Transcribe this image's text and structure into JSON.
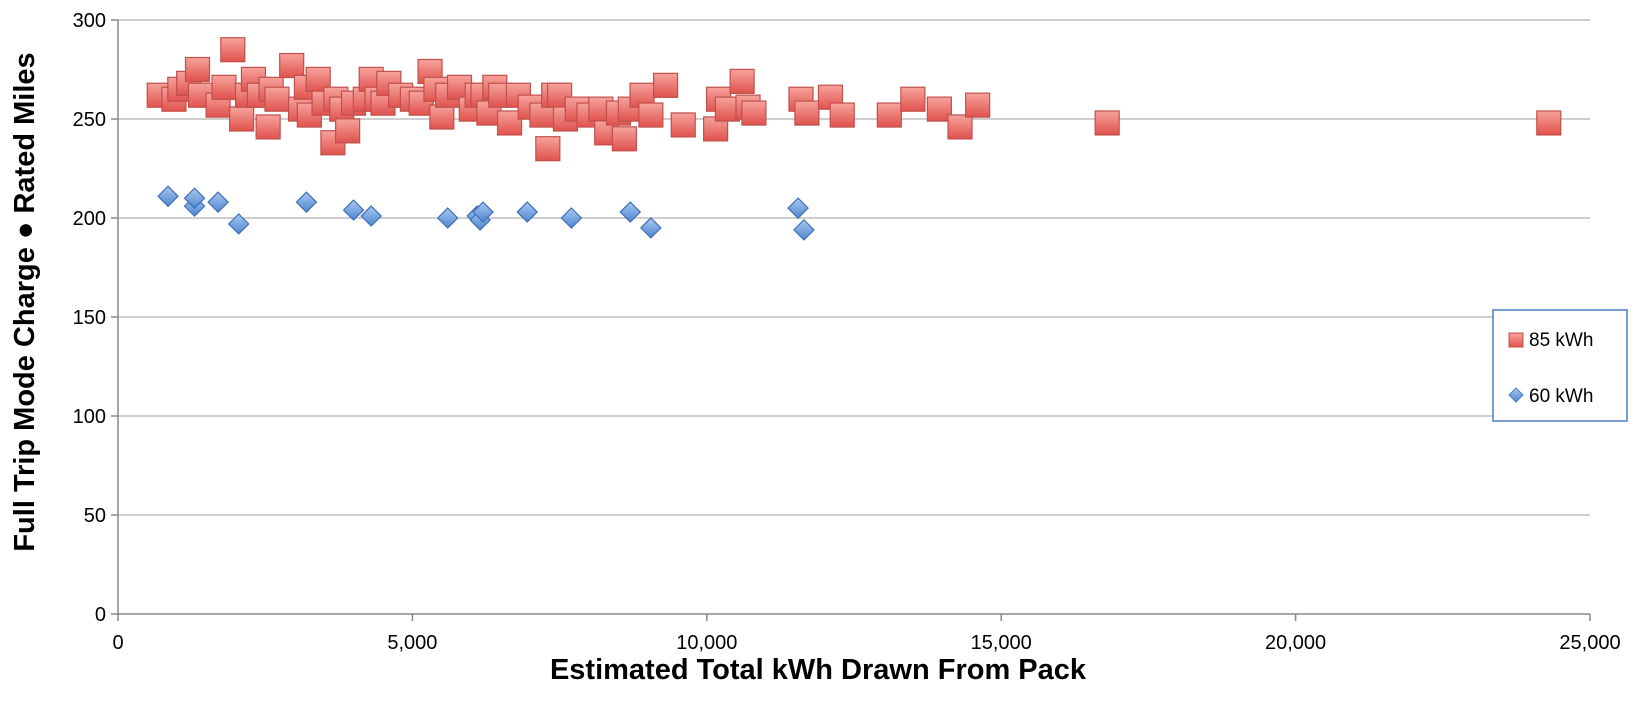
{
  "chart_data": {
    "type": "scatter",
    "title": "",
    "xlabel": "Estimated Total kWh Drawn From Pack",
    "ylabel": "Full Trip Mode Charge ● Rated Miles",
    "xlim": [
      0,
      25000
    ],
    "ylim": [
      0,
      300
    ],
    "x_ticks": [
      0,
      5000,
      10000,
      15000,
      20000,
      25000
    ],
    "x_tick_labels": [
      "0",
      "5,000",
      "10,000",
      "15,000",
      "20,000",
      "25,000"
    ],
    "y_ticks": [
      0,
      50,
      100,
      150,
      200,
      250,
      300
    ],
    "y_tick_labels": [
      "0",
      "50",
      "100",
      "150",
      "200",
      "250",
      "300"
    ],
    "grid": true,
    "legend_position": "right",
    "series": [
      {
        "name": "85 kWh",
        "marker": "square",
        "color": "#e8605a",
        "x": [
          700,
          950,
          1050,
          1200,
          1350,
          1400,
          1700,
          1800,
          1950,
          2100,
          2200,
          2300,
          2400,
          2550,
          2600,
          2700,
          2950,
          3100,
          3200,
          3250,
          3400,
          3500,
          3650,
          3700,
          3800,
          3900,
          4000,
          4200,
          4300,
          4400,
          4500,
          4600,
          4800,
          5000,
          5150,
          5300,
          5400,
          5500,
          5600,
          5800,
          6000,
          6100,
          6200,
          6300,
          6400,
          6500,
          6650,
          6800,
          7000,
          7200,
          7300,
          7400,
          7500,
          7600,
          7800,
          8000,
          8200,
          8300,
          8500,
          8600,
          8700,
          8900,
          9050,
          9300,
          9600,
          10150,
          10200,
          10350,
          10600,
          10700,
          10800,
          11600,
          11700,
          12100,
          12300,
          13100,
          13500,
          13950,
          14300,
          14600,
          16800,
          24300
        ],
        "y": [
          262,
          260,
          265,
          268,
          275,
          262,
          257,
          266,
          285,
          250,
          262,
          270,
          262,
          246,
          265,
          260,
          277,
          255,
          266,
          252,
          270,
          258,
          238,
          260,
          255,
          244,
          258,
          260,
          270,
          260,
          258,
          268,
          262,
          260,
          258,
          274,
          265,
          251,
          262,
          266,
          255,
          262,
          262,
          253,
          266,
          262,
          248,
          262,
          256,
          252,
          235,
          262,
          262,
          250,
          255,
          252,
          255,
          243,
          253,
          240,
          255,
          262,
          252,
          267,
          247,
          245,
          260,
          255,
          269,
          256,
          253,
          260,
          253,
          261,
          252,
          252,
          260,
          255,
          246,
          257,
          248,
          248
        ]
      },
      {
        "name": "60 kWh",
        "marker": "diamond",
        "color": "#5b8fd6",
        "x": [
          850,
          1300,
          1300,
          1700,
          2050,
          3200,
          4000,
          4300,
          5600,
          6100,
          6150,
          6200,
          6950,
          7700,
          8700,
          9050,
          11550,
          11650
        ],
        "y": [
          211,
          206,
          210,
          208,
          197,
          208,
          204,
          201,
          200,
          201,
          199,
          203,
          203,
          200,
          203,
          195,
          205,
          194
        ]
      }
    ]
  },
  "colors": {
    "gridline": "#bdbdbd",
    "axis": "#888888",
    "text": "#000000",
    "legend_border": "#4a7ec2"
  }
}
